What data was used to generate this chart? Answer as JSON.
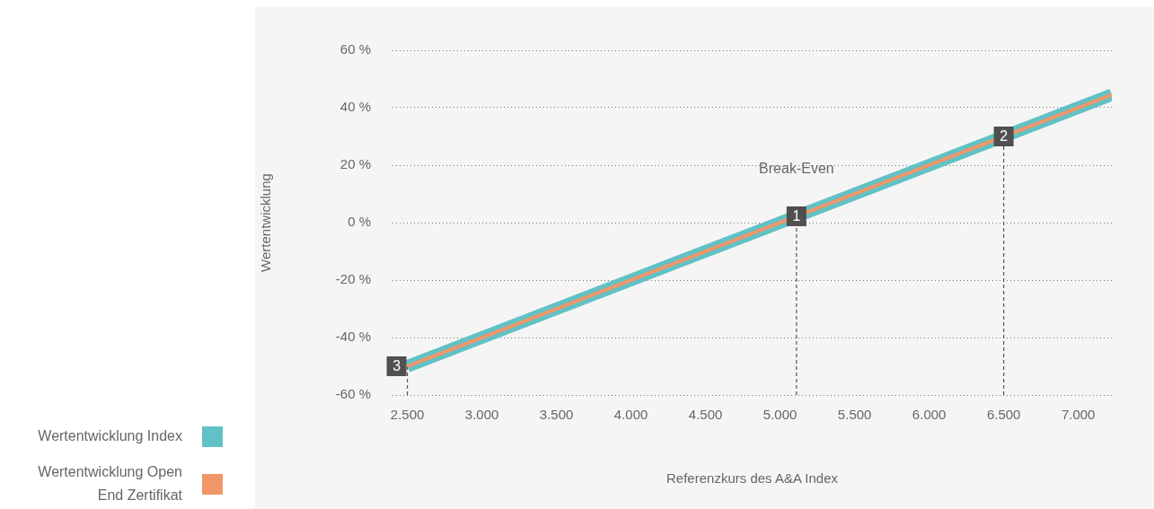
{
  "chart_data": {
    "type": "line",
    "xlabel": "Referenzkurs des A&A Index",
    "ylabel": "Wertentwicklung",
    "x": [
      2500,
      7225
    ],
    "series": [
      {
        "name": "Wertentwicklung Index",
        "color": "#62c1c5",
        "values": [
          -50,
          44.5
        ]
      },
      {
        "name": "Wertentwicklung Open End Zertifikat",
        "color": "#f09669",
        "values": [
          -50,
          44.5
        ]
      }
    ],
    "xlim": [
      2400,
      7225
    ],
    "xticks": [
      {
        "value": 2500,
        "label": "2.500"
      },
      {
        "value": 3000,
        "label": "3.000"
      },
      {
        "value": 3500,
        "label": "3.500"
      },
      {
        "value": 4000,
        "label": "4.000"
      },
      {
        "value": 4500,
        "label": "4.500"
      },
      {
        "value": 5000,
        "label": "5.000"
      },
      {
        "value": 5500,
        "label": "5.500"
      },
      {
        "value": 6000,
        "label": "6.000"
      },
      {
        "value": 6500,
        "label": "6.500"
      },
      {
        "value": 7000,
        "label": "7.000"
      }
    ],
    "ylim": [
      -60,
      60
    ],
    "yticks": [
      {
        "value": -60,
        "label": "-60 %"
      },
      {
        "value": -40,
        "label": "-40 %"
      },
      {
        "value": -20,
        "label": "-20 %"
      },
      {
        "value": 0,
        "label": "0 %"
      },
      {
        "value": 20,
        "label": "20 %"
      },
      {
        "value": 40,
        "label": "40 %"
      },
      {
        "value": 60,
        "label": "60 %"
      }
    ],
    "ref_lines": [
      {
        "axis": "x",
        "value": 5110,
        "color": "#555555",
        "line_style": "dashed"
      },
      {
        "axis": "x",
        "value": 6500,
        "color": "#555555",
        "line_style": "dashed"
      },
      {
        "axis": "x",
        "value": 2500,
        "color": "#555555",
        "line_style": "dashed"
      }
    ],
    "annotations": [
      {
        "text": "1",
        "x": 5110,
        "y": 2.2
      },
      {
        "text": "2",
        "x": 6500,
        "y": 30
      },
      {
        "text": "3",
        "x": 2500,
        "y": -50
      },
      "Break-Even"
    ],
    "grid": "y",
    "legend": "left",
    "line_style": "solid"
  }
}
